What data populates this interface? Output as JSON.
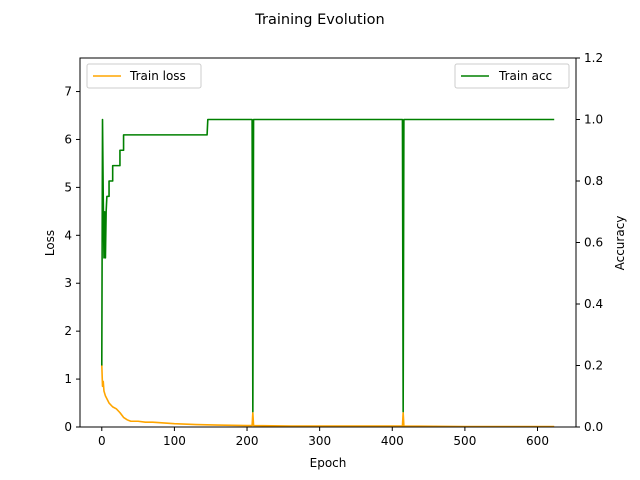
{
  "chart_data": {
    "type": "line",
    "title": "Training Evolution",
    "xlabel": "Epoch",
    "ylabel_left": "Loss",
    "ylabel_right": "Accuracy",
    "xlim": [
      -30,
      653
    ],
    "ylim_left": [
      0,
      7.7
    ],
    "ylim_right": [
      0,
      1.2
    ],
    "xticks": [
      0,
      100,
      200,
      300,
      400,
      500,
      600
    ],
    "yticks_left": [
      0,
      1,
      2,
      3,
      4,
      5,
      6,
      7
    ],
    "yticks_right": [
      0.0,
      0.2,
      0.4,
      0.6,
      0.8,
      1.0,
      1.2
    ],
    "grid": false,
    "series": [
      {
        "name": "Train loss",
        "axis": "left",
        "color": "#ffa500",
        "legend": "top-left",
        "points": [
          [
            0,
            1.3
          ],
          [
            1,
            0.85
          ],
          [
            2,
            0.95
          ],
          [
            3,
            0.75
          ],
          [
            5,
            0.65
          ],
          [
            10,
            0.5
          ],
          [
            15,
            0.42
          ],
          [
            20,
            0.38
          ],
          [
            25,
            0.3
          ],
          [
            30,
            0.2
          ],
          [
            35,
            0.15
          ],
          [
            40,
            0.12
          ],
          [
            50,
            0.12
          ],
          [
            60,
            0.1
          ],
          [
            70,
            0.1
          ],
          [
            80,
            0.09
          ],
          [
            100,
            0.07
          ],
          [
            130,
            0.05
          ],
          [
            160,
            0.04
          ],
          [
            200,
            0.03
          ],
          [
            207,
            0.03
          ],
          [
            208,
            0.3
          ],
          [
            209,
            0.03
          ],
          [
            260,
            0.02
          ],
          [
            300,
            0.02
          ],
          [
            414,
            0.02
          ],
          [
            415,
            0.3
          ],
          [
            416,
            0.02
          ],
          [
            500,
            0.01
          ],
          [
            623,
            0.01
          ]
        ]
      },
      {
        "name": "Train acc",
        "axis": "right",
        "color": "#008000",
        "legend": "top-right",
        "points": [
          [
            0,
            0.2
          ],
          [
            1,
            1.0
          ],
          [
            2,
            0.75
          ],
          [
            3,
            0.55
          ],
          [
            4,
            0.7
          ],
          [
            5,
            0.55
          ],
          [
            6,
            0.7
          ],
          [
            7,
            0.75
          ],
          [
            10,
            0.75
          ],
          [
            10,
            0.8
          ],
          [
            15,
            0.8
          ],
          [
            15,
            0.85
          ],
          [
            25,
            0.85
          ],
          [
            25,
            0.9
          ],
          [
            30,
            0.9
          ],
          [
            30,
            0.95
          ],
          [
            145,
            0.95
          ],
          [
            146,
            1.0
          ],
          [
            207,
            1.0
          ],
          [
            208,
            0.05
          ],
          [
            209,
            1.0
          ],
          [
            414,
            1.0
          ],
          [
            415,
            0.05
          ],
          [
            416,
            1.0
          ],
          [
            623,
            1.0
          ]
        ]
      }
    ]
  }
}
